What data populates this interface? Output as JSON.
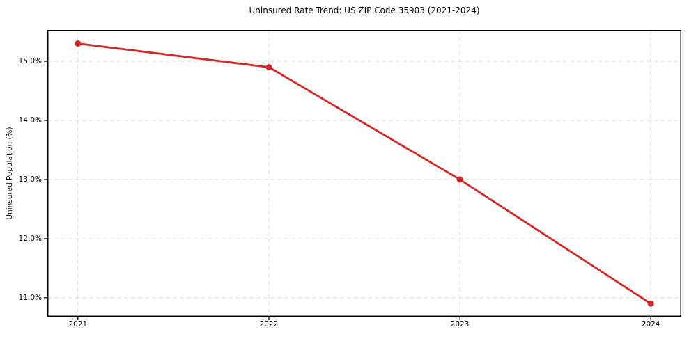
{
  "figure": {
    "background": "#ffffff"
  },
  "chart_data": {
    "type": "line",
    "title": "Uninsured Rate Trend: US ZIP Code 35903 (2021-2024)",
    "xlabel": "",
    "ylabel": "Uninsured Population (%)",
    "categories": [
      "2021",
      "2022",
      "2023",
      "2024"
    ],
    "x": [
      2021,
      2022,
      2023,
      2024
    ],
    "series": [
      {
        "name": "Uninsured rate",
        "values": [
          15.3,
          14.9,
          13.0,
          10.9
        ]
      }
    ],
    "xlim": [
      2020.84,
      2024.16
    ],
    "ylim": [
      10.68,
      15.53
    ],
    "xticks": {
      "values": [
        2021,
        2022,
        2023,
        2024
      ],
      "labels": [
        "2021",
        "2022",
        "2023",
        "2024"
      ]
    },
    "yticks": {
      "values": [
        11,
        12,
        13,
        14,
        15
      ],
      "labels": [
        "11.0%",
        "12.0%",
        "13.0%",
        "14.0%",
        "15.0%"
      ]
    },
    "grid": true,
    "grid_style": "dashed",
    "legend": "none",
    "marker": "circle",
    "colors": {
      "line": "#d62728",
      "marker": "#d62728",
      "grid": "#d9d9d9",
      "spine": "#000000",
      "tick": "#000000",
      "text": "#000000",
      "background": "#ffffff"
    }
  }
}
